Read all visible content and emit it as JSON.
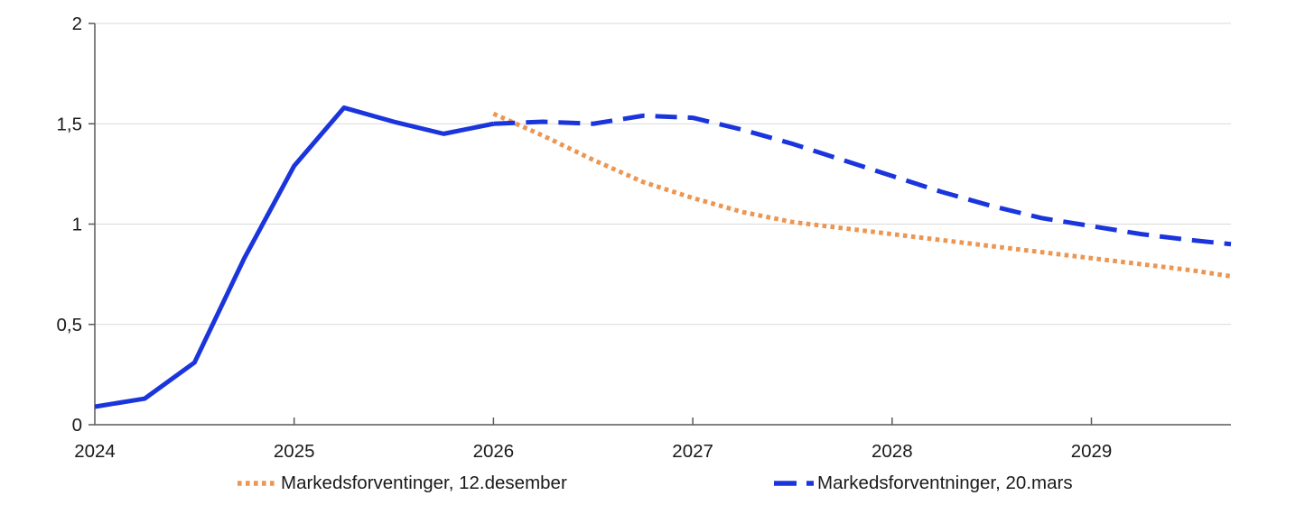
{
  "chart_data": {
    "type": "line",
    "title": "",
    "xlabel": "",
    "ylabel": "",
    "xlim": [
      2024,
      2029.7
    ],
    "ylim": [
      0,
      2
    ],
    "grid": "horizontal",
    "grid_color": "#d9d9d9",
    "axis_color": "#595959",
    "text_color": "#1a1a1a",
    "legend_position": "bottom",
    "x_ticks": [
      2024,
      2025,
      2026,
      2027,
      2028,
      2029
    ],
    "x_tick_labels": [
      "2024",
      "2025",
      "2026",
      "2027",
      "2028",
      "2029"
    ],
    "y_ticks": [
      0,
      0.5,
      1,
      1.5,
      2
    ],
    "y_tick_labels": [
      "0",
      "0,5",
      "1",
      "1,5",
      "2"
    ],
    "series": [
      {
        "name": "",
        "style": "solid",
        "color": "#1a35dc",
        "width": 5,
        "x": [
          2024.0,
          2024.25,
          2024.5,
          2024.75,
          2025.0,
          2025.25,
          2025.5,
          2025.75,
          2026.0
        ],
        "y": [
          0.09,
          0.13,
          0.31,
          0.83,
          1.29,
          1.58,
          1.51,
          1.45,
          1.5
        ]
      },
      {
        "name": "Markedsforventinger, 12.desember",
        "style": "dotted",
        "color": "#ec9652",
        "width": 5,
        "x": [
          2026.0,
          2026.25,
          2026.5,
          2026.75,
          2027.0,
          2027.25,
          2027.5,
          2027.75,
          2028.0,
          2028.25,
          2028.5,
          2028.75,
          2029.0,
          2029.25,
          2029.5,
          2029.7
        ],
        "y": [
          1.55,
          1.44,
          1.32,
          1.21,
          1.13,
          1.06,
          1.01,
          0.98,
          0.95,
          0.92,
          0.89,
          0.86,
          0.83,
          0.8,
          0.77,
          0.74
        ]
      },
      {
        "name": "Markedsforventninger, 20.mars",
        "style": "dashed",
        "color": "#1a35dc",
        "width": 5,
        "x": [
          2026.0,
          2026.25,
          2026.5,
          2026.75,
          2027.0,
          2027.25,
          2027.5,
          2027.75,
          2028.0,
          2028.25,
          2028.5,
          2028.75,
          2029.0,
          2029.25,
          2029.5,
          2029.7
        ],
        "y": [
          1.5,
          1.51,
          1.5,
          1.54,
          1.53,
          1.47,
          1.4,
          1.32,
          1.24,
          1.16,
          1.09,
          1.03,
          0.99,
          0.95,
          0.92,
          0.9
        ]
      }
    ]
  }
}
